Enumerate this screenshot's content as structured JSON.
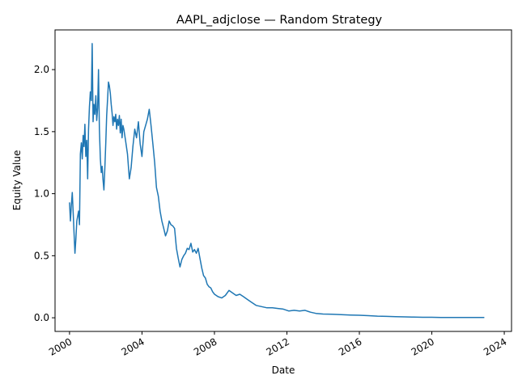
{
  "chart_data": {
    "type": "line",
    "title": "AAPL_adjclose — Random Strategy",
    "xlabel": "Date",
    "ylabel": "Equity Value",
    "x_ticks": [
      "2000",
      "2004",
      "2008",
      "2012",
      "2016",
      "2020",
      "2024"
    ],
    "y_ticks": [
      "0.0",
      "0.5",
      "1.0",
      "1.5",
      "2.0"
    ],
    "xlim": [
      1999.2,
      2024.4
    ],
    "ylim": [
      -0.11,
      2.32
    ],
    "grid": false,
    "series": [
      {
        "color": "#1f77b4",
        "x": [
          2000.0,
          2000.05,
          2000.1,
          2000.15,
          2000.2,
          2000.25,
          2000.3,
          2000.35,
          2000.4,
          2000.45,
          2000.5,
          2000.55,
          2000.6,
          2000.65,
          2000.7,
          2000.75,
          2000.8,
          2000.85,
          2000.9,
          2000.95,
          2001.0,
          2001.05,
          2001.1,
          2001.15,
          2001.2,
          2001.25,
          2001.3,
          2001.35,
          2001.4,
          2001.45,
          2001.5,
          2001.55,
          2001.6,
          2001.65,
          2001.7,
          2001.75,
          2001.8,
          2001.85,
          2001.9,
          2001.95,
          2002.0,
          2002.05,
          2002.1,
          2002.15,
          2002.2,
          2002.25,
          2002.3,
          2002.35,
          2002.4,
          2002.45,
          2002.5,
          2002.55,
          2002.6,
          2002.65,
          2002.7,
          2002.75,
          2002.8,
          2002.85,
          2002.9,
          2002.95,
          2003.0,
          2003.1,
          2003.2,
          2003.3,
          2003.4,
          2003.5,
          2003.6,
          2003.7,
          2003.8,
          2003.9,
          2004.0,
          2004.1,
          2004.2,
          2004.3,
          2004.4,
          2004.5,
          2004.6,
          2004.7,
          2004.8,
          2004.9,
          2005.0,
          2005.1,
          2005.2,
          2005.3,
          2005.4,
          2005.5,
          2005.6,
          2005.7,
          2005.8,
          2005.9,
          2006.0,
          2006.1,
          2006.2,
          2006.3,
          2006.4,
          2006.5,
          2006.6,
          2006.7,
          2006.8,
          2006.9,
          2007.0,
          2007.1,
          2007.2,
          2007.3,
          2007.4,
          2007.5,
          2007.6,
          2007.7,
          2007.8,
          2007.9,
          2008.0,
          2008.2,
          2008.4,
          2008.6,
          2008.8,
          2009.0,
          2009.2,
          2009.4,
          2009.6,
          2009.8,
          2010.0,
          2010.3,
          2010.6,
          2010.9,
          2011.2,
          2011.5,
          2011.8,
          2012.1,
          2012.4,
          2012.7,
          2013.0,
          2013.3,
          2013.6,
          2014.0,
          2014.5,
          2015.0,
          2015.5,
          2016.0,
          2016.5,
          2017.0,
          2017.5,
          2018.0,
          2018.5,
          2019.0,
          2019.5,
          2020.0,
          2020.5,
          2021.0,
          2021.5,
          2022.0,
          2022.5,
          2022.9
        ],
        "y": [
          0.93,
          0.78,
          0.9,
          1.01,
          0.85,
          0.68,
          0.52,
          0.63,
          0.78,
          0.82,
          0.86,
          0.75,
          1.32,
          1.41,
          1.28,
          1.47,
          1.38,
          1.56,
          1.3,
          1.43,
          1.12,
          1.52,
          1.7,
          1.82,
          1.75,
          2.21,
          1.58,
          1.72,
          1.64,
          1.79,
          1.59,
          1.69,
          2.0,
          1.52,
          1.28,
          1.17,
          1.22,
          1.11,
          1.03,
          1.2,
          1.41,
          1.63,
          1.76,
          1.9,
          1.87,
          1.81,
          1.72,
          1.65,
          1.55,
          1.62,
          1.58,
          1.64,
          1.52,
          1.6,
          1.55,
          1.63,
          1.49,
          1.6,
          1.45,
          1.55,
          1.52,
          1.42,
          1.32,
          1.12,
          1.21,
          1.38,
          1.52,
          1.45,
          1.58,
          1.4,
          1.3,
          1.5,
          1.55,
          1.6,
          1.68,
          1.55,
          1.4,
          1.25,
          1.05,
          0.98,
          0.86,
          0.78,
          0.72,
          0.66,
          0.7,
          0.78,
          0.75,
          0.74,
          0.72,
          0.56,
          0.48,
          0.41,
          0.47,
          0.5,
          0.52,
          0.56,
          0.55,
          0.6,
          0.53,
          0.55,
          0.52,
          0.56,
          0.48,
          0.4,
          0.34,
          0.32,
          0.27,
          0.25,
          0.24,
          0.21,
          0.19,
          0.17,
          0.16,
          0.18,
          0.22,
          0.2,
          0.18,
          0.19,
          0.17,
          0.15,
          0.13,
          0.1,
          0.09,
          0.08,
          0.08,
          0.075,
          0.07,
          0.055,
          0.06,
          0.055,
          0.06,
          0.045,
          0.035,
          0.03,
          0.028,
          0.025,
          0.022,
          0.02,
          0.017,
          0.013,
          0.011,
          0.009,
          0.007,
          0.005,
          0.004,
          0.004,
          0.003,
          0.003,
          0.002,
          0.002,
          0.002,
          0.002
        ]
      }
    ]
  }
}
